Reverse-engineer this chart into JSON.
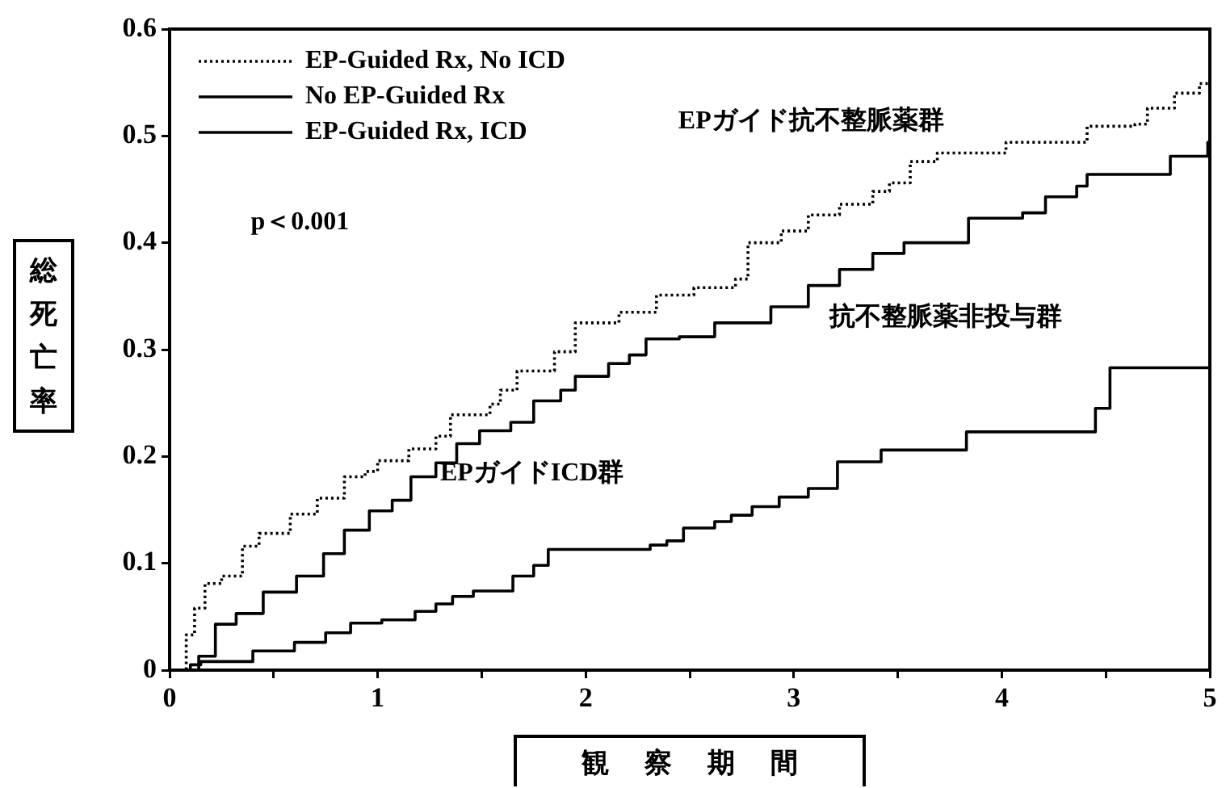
{
  "chart_data": {
    "type": "step",
    "xlabel": "観察期間",
    "ylabel": "総死亡率",
    "xlim": [
      0,
      5
    ],
    "ylim": [
      0,
      0.6
    ],
    "xticks": [
      0,
      {
        "value": 0.5,
        "label": null
      },
      1,
      {
        "value": 1.5,
        "label": null
      },
      2,
      {
        "value": 2.5,
        "label": null
      },
      3,
      {
        "value": 3.5,
        "label": null
      },
      4,
      {
        "value": 4.5,
        "label": null
      },
      5
    ],
    "yticks": [
      0,
      0.1,
      0.2,
      0.3,
      0.4,
      0.5,
      0.6
    ],
    "grid": false,
    "legend": "top left",
    "marker": "none",
    "series": [
      {
        "name": "EP-Guided Rx, No ICD",
        "color": "#000000",
        "line_style": "dotted",
        "x": [
          0,
          0.08,
          0.12,
          0.17,
          0.25,
          0.35,
          0.43,
          0.58,
          0.71,
          0.84,
          0.94,
          1.0,
          1.15,
          1.28,
          1.35,
          1.54,
          1.59,
          1.67,
          1.85,
          1.95,
          2.16,
          2.34,
          2.52,
          2.72,
          2.78,
          2.94,
          3.07,
          3.22,
          3.38,
          3.46,
          3.56,
          3.69,
          4.02,
          4.41,
          4.64,
          4.7,
          4.83,
          4.95,
          5
        ],
        "values": [
          0,
          0.033,
          0.058,
          0.081,
          0.088,
          0.116,
          0.128,
          0.146,
          0.161,
          0.181,
          0.186,
          0.196,
          0.207,
          0.219,
          0.239,
          0.249,
          0.262,
          0.28,
          0.298,
          0.325,
          0.335,
          0.351,
          0.358,
          0.366,
          0.4,
          0.411,
          0.426,
          0.436,
          0.448,
          0.456,
          0.476,
          0.484,
          0.494,
          0.509,
          0.511,
          0.526,
          0.54,
          0.549,
          0.565
        ]
      },
      {
        "name": "No EP-Guided Rx",
        "color": "#000000",
        "line_style": "solid",
        "x": [
          0,
          0.14,
          0.22,
          0.32,
          0.45,
          0.61,
          0.74,
          0.84,
          0.96,
          1.07,
          1.16,
          1.28,
          1.38,
          1.49,
          1.64,
          1.75,
          1.88,
          1.95,
          2.11,
          2.21,
          2.29,
          2.45,
          2.62,
          2.89,
          3.07,
          3.22,
          3.38,
          3.53,
          3.84,
          4.1,
          4.21,
          4.36,
          4.41,
          4.81,
          4.99,
          5
        ],
        "values": [
          0,
          0.013,
          0.043,
          0.053,
          0.073,
          0.088,
          0.109,
          0.131,
          0.149,
          0.159,
          0.181,
          0.194,
          0.212,
          0.224,
          0.232,
          0.252,
          0.262,
          0.275,
          0.287,
          0.295,
          0.31,
          0.312,
          0.325,
          0.34,
          0.36,
          0.375,
          0.39,
          0.4,
          0.423,
          0.428,
          0.443,
          0.453,
          0.464,
          0.481,
          0.494,
          0.494
        ]
      },
      {
        "name": "EP-Guided Rx, ICD",
        "color": "#000000",
        "line_style": "solid",
        "x": [
          0,
          0.1,
          0.15,
          0.4,
          0.6,
          0.75,
          0.87,
          1.02,
          1.18,
          1.28,
          1.36,
          1.46,
          1.65,
          1.75,
          1.82,
          2.31,
          2.39,
          2.47,
          2.62,
          2.7,
          2.8,
          2.93,
          3.07,
          3.21,
          3.42,
          3.83,
          4.45,
          4.52,
          5
        ],
        "values": [
          0,
          0.005,
          0.008,
          0.018,
          0.026,
          0.035,
          0.044,
          0.047,
          0.055,
          0.062,
          0.069,
          0.074,
          0.088,
          0.098,
          0.113,
          0.117,
          0.121,
          0.133,
          0.139,
          0.145,
          0.153,
          0.162,
          0.17,
          0.195,
          0.206,
          0.223,
          0.245,
          0.283,
          0.283
        ]
      }
    ],
    "annotations": [
      "p＜0.001",
      "EPガイド抗不整脈薬群",
      "抗不整脈薬非投与群",
      "EPガイドICD群"
    ]
  }
}
